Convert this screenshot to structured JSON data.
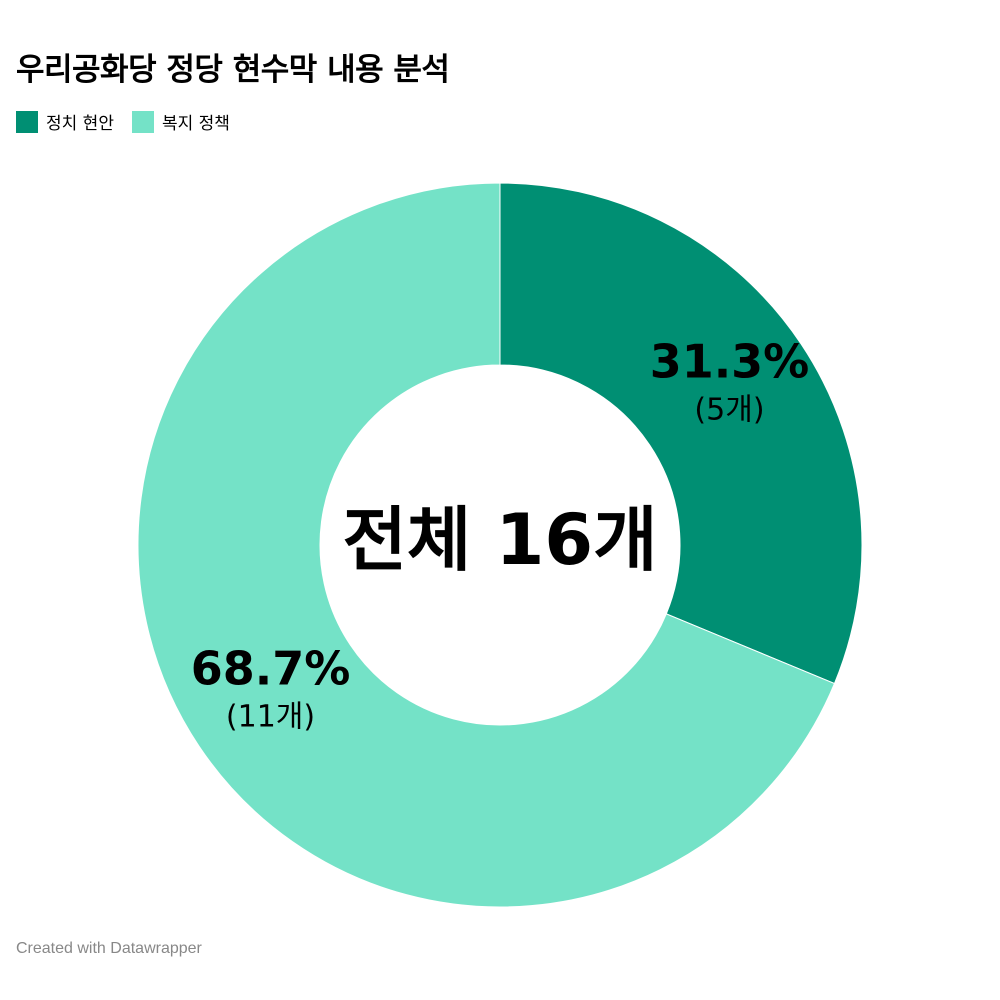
{
  "chart_data": {
    "type": "pie",
    "title": "우리공화당 정당 현수막 내용 분석",
    "donut": true,
    "center_label": "전체 16개",
    "legend_position": "top-left",
    "categories": [
      "정치 현안",
      "복지 정책"
    ],
    "values": [
      5,
      11
    ],
    "percent_labels": [
      "31.3%",
      "68.7%"
    ],
    "count_labels": [
      "(5개)",
      "(11개)"
    ],
    "colors": [
      "#008F73",
      "#74E2C7"
    ]
  },
  "footer": "Created with Datawrapper"
}
